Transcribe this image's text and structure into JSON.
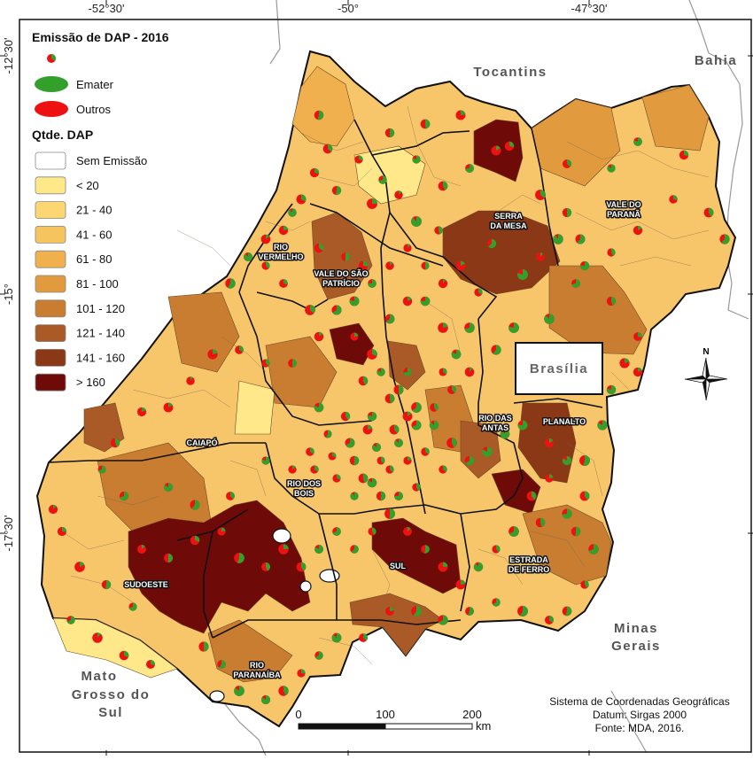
{
  "map": {
    "title": "Emissão de DAP - 2016",
    "top_ticks": [
      "-52°30'",
      "-50°",
      "-47°30'"
    ],
    "left_ticks": [
      "-12°30'",
      "-15°",
      "-17°30'"
    ],
    "neighbors": {
      "tocantins": "Tocantins",
      "bahia": "Bahia",
      "minas_line1": "Minas",
      "minas_line2": "Gerais",
      "ms_line1": "Mato",
      "ms_line2": "Grosso do",
      "ms_line3": "Sul",
      "brasilia": "Brasília"
    },
    "regions": {
      "rio_vermelho_1": "RIO",
      "rio_vermelho_2": "VERMELHO",
      "vale_sao_patricio_1": "VALE DO SÃO",
      "vale_sao_patricio_2": "PATRÍCIO",
      "serra_da_mesa_1": "SERRA",
      "serra_da_mesa_2": "DA MESA",
      "vale_parana_1": "VALE DO",
      "vale_parana_2": "PARANÃ",
      "rio_das_antas_1": "RIO DAS",
      "rio_das_antas_2": "ANTAS",
      "planalto": "PLANALTO",
      "caiapo": "CAIAPÓ",
      "rio_dos_bois_1": "RIO DOS",
      "rio_dos_bois_2": "BOIS",
      "sudoeste": "SUDOESTE",
      "sul": "SUL",
      "estrada_ferro_1": "ESTRADA",
      "estrada_ferro_2": "DE FERRO",
      "rio_paranaiba_1": "RIO",
      "rio_paranaiba_2": "PARANAÍBA"
    },
    "colors": {
      "emater": "#33a02c",
      "outros": "#ee1111",
      "background": "#ffffff",
      "out_of_state": "#ffffff"
    }
  },
  "legend": {
    "symbol_emater": "Emater",
    "symbol_outros": "Outros",
    "class_title": "Qtde. DAP",
    "classes": [
      {
        "label": "Sem Emissão",
        "color": "#ffffff"
      },
      {
        "label": "< 20",
        "color": "#ffe88a"
      },
      {
        "label": "21 - 40",
        "color": "#fbd672"
      },
      {
        "label": "41 - 60",
        "color": "#f6c45f"
      },
      {
        "label": "61 - 80",
        "color": "#efb04d"
      },
      {
        "label": "81 - 100",
        "color": "#e19a3e"
      },
      {
        "label": "101 - 120",
        "color": "#c97d31"
      },
      {
        "label": "121 - 140",
        "color": "#a95a26"
      },
      {
        "label": "141 - 160",
        "color": "#8a3815"
      },
      {
        "label": "> 160",
        "color": "#6e0a08"
      }
    ]
  },
  "scalebar": {
    "labels": [
      "0",
      "100",
      "200"
    ],
    "unit": "km"
  },
  "credits": {
    "line1": "Sistema de Coordenadas Geográficas",
    "line2": "Datum: Sirgas 2000",
    "line3": "Fonte: MDA, 2016."
  },
  "north_arrow": "N"
}
